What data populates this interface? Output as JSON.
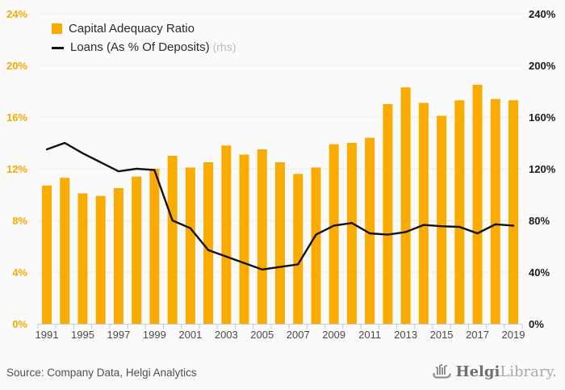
{
  "legend": {
    "items": [
      {
        "label": "Capital Adequacy Ratio",
        "swatch": "square"
      },
      {
        "label": "Loans (As % Of Deposits)",
        "suffix": "(rhs)",
        "swatch": "line"
      }
    ]
  },
  "footer": {
    "source": "Source: Company Data, Helgi Analytics",
    "logo_text_primary": "Helgi",
    "logo_text_secondary": "Library."
  },
  "colors": {
    "bar": "#F9AB00",
    "line": "#111111",
    "left_axis_text": "#F9A800",
    "right_axis_text": "#1a1a1a",
    "grid": "#e9e9e9",
    "axis_line": "#c3cbe2",
    "x_label": "#4a4a4a",
    "background": "#fafafa",
    "legend_text": "#2b2b2b",
    "legend_suffix": "#bdbdbd",
    "source_text": "#4f4f4f",
    "logo_gray": "#8f8f8f"
  },
  "chart_data": {
    "type": "bar",
    "title": "",
    "categories": [
      "1991",
      "1993",
      "1995",
      "1996",
      "1997",
      "1998",
      "1999",
      "2000",
      "2001",
      "2002",
      "2003",
      "2004",
      "2005",
      "2006",
      "2007",
      "2008",
      "2009",
      "2010",
      "2011",
      "2012",
      "2013",
      "2014",
      "2015",
      "2016",
      "2017",
      "2018",
      "2019"
    ],
    "x_tick_labels_shown": [
      "1991",
      "1995",
      "1997",
      "1999",
      "2001",
      "2003",
      "2005",
      "2007",
      "2009",
      "2011",
      "2013",
      "2015",
      "2017",
      "2019"
    ],
    "series": [
      {
        "name": "Capital Adequacy Ratio",
        "type": "bar",
        "axis": "left",
        "unit": "%",
        "values": [
          10.7,
          11.3,
          10.1,
          9.9,
          10.5,
          11.4,
          12.0,
          13.0,
          12.1,
          12.5,
          13.8,
          13.1,
          13.5,
          12.5,
          11.6,
          12.1,
          13.9,
          14.0,
          14.4,
          17.0,
          18.3,
          17.1,
          16.1,
          17.3,
          18.5,
          17.4,
          17.3
        ]
      },
      {
        "name": "Loans (As % Of Deposits)",
        "type": "line",
        "axis": "right",
        "unit": "%",
        "values": [
          135,
          140,
          132,
          125,
          118,
          120,
          119,
          80,
          74,
          57,
          52,
          47,
          42,
          44,
          46,
          69,
          76,
          78,
          70,
          69,
          71,
          76.5,
          75.5,
          75,
          70,
          77,
          76
        ]
      }
    ],
    "left_axis": {
      "min": 0,
      "max": 24,
      "step": 4,
      "tick_labels": [
        "0%",
        "4%",
        "8%",
        "12%",
        "16%",
        "20%",
        "24%"
      ]
    },
    "right_axis": {
      "min": 0,
      "max": 240,
      "step": 40,
      "tick_labels": [
        "0%",
        "40%",
        "80%",
        "120%",
        "160%",
        "200%",
        "240%"
      ]
    },
    "grid": "horizontal",
    "legend_position": "top-left"
  }
}
